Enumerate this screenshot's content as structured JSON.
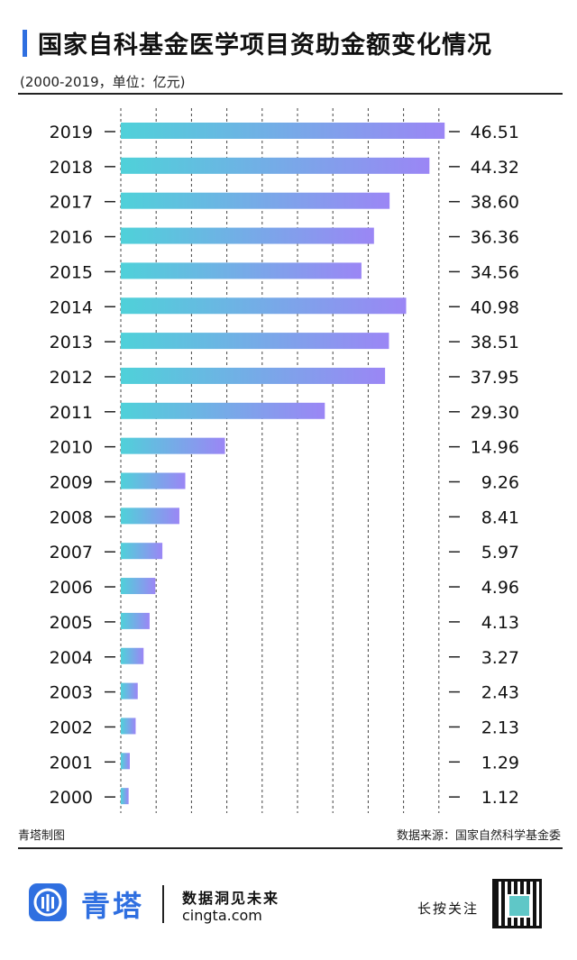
{
  "header": {
    "title": "国家自科基金医学项目资助金额变化情况",
    "subtitle": "(2000-2019，单位：亿元)"
  },
  "chart_data": {
    "type": "bar",
    "orientation": "horizontal",
    "title": "国家自科基金医学项目资助金额变化情况",
    "subtitle": "(2000-2019，单位：亿元)",
    "categories": [
      "2019",
      "2018",
      "2017",
      "2016",
      "2015",
      "2014",
      "2013",
      "2012",
      "2011",
      "2010",
      "2009",
      "2008",
      "2007",
      "2006",
      "2005",
      "2004",
      "2003",
      "2002",
      "2001",
      "2000"
    ],
    "values": [
      46.51,
      44.32,
      38.6,
      36.36,
      34.56,
      40.98,
      38.51,
      37.95,
      29.3,
      14.96,
      9.26,
      8.41,
      5.97,
      4.96,
      4.13,
      3.27,
      2.43,
      2.13,
      1.29,
      1.12
    ],
    "labels": [
      "46.51",
      "44.32",
      "38.60",
      "36.36",
      "34.56",
      "40.98",
      "38.51",
      "37.95",
      "29.30",
      "14.96",
      "9.26",
      "8.41",
      "5.97",
      "4.96",
      "4.13",
      "3.27",
      "2.43",
      "2.13",
      "1.29",
      "1.12"
    ],
    "xlim": [
      0,
      47
    ],
    "grid": true,
    "bar_gradient": [
      "#4fd1d9",
      "#9b86f5"
    ]
  },
  "footer": {
    "made_by": "青塔制图",
    "source": "数据来源：国家自然科学基金委",
    "brand": "青塔",
    "slogan": "数据洞见未来",
    "site": "cingta.com",
    "follow": "长按关注"
  }
}
